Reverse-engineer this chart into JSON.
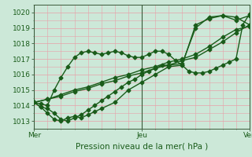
{
  "title": "",
  "xlabel": "Pression niveau de la mer( hPa )",
  "ylabel": "",
  "ylim": [
    1012.5,
    1020.5
  ],
  "xlim": [
    0,
    96
  ],
  "bg_color": "#cce8d8",
  "plot_bg_color": "#cce8d8",
  "grid_color": "#e8a0a8",
  "line_color": "#1a5c1a",
  "xticks": [
    0,
    48,
    96
  ],
  "xtick_labels": [
    "Mer",
    "Jeu",
    "Ven"
  ],
  "yticks": [
    1013,
    1014,
    1015,
    1016,
    1017,
    1018,
    1019,
    1020
  ],
  "series": [
    {
      "x": [
        0,
        6,
        12,
        18,
        24,
        30,
        36,
        42,
        48,
        54,
        60,
        66,
        72,
        78,
        84,
        90,
        96
      ],
      "y": [
        1014.2,
        1014.4,
        1014.6,
        1014.9,
        1015.1,
        1015.4,
        1015.6,
        1015.9,
        1016.1,
        1016.4,
        1016.6,
        1016.9,
        1017.1,
        1017.6,
        1018.1,
        1018.7,
        1019.2
      ],
      "marker": "D",
      "markersize": 2.5,
      "linewidth": 1.0
    },
    {
      "x": [
        0,
        6,
        12,
        18,
        24,
        30,
        36,
        42,
        48,
        54,
        60,
        66,
        72,
        78,
        84,
        90,
        96
      ],
      "y": [
        1014.2,
        1014.4,
        1014.7,
        1015.0,
        1015.2,
        1015.5,
        1015.8,
        1016.0,
        1016.3,
        1016.5,
        1016.8,
        1017.0,
        1017.3,
        1017.8,
        1018.4,
        1018.9,
        1019.1
      ],
      "marker": "D",
      "markersize": 2.5,
      "linewidth": 1.0
    },
    {
      "x": [
        0,
        3,
        6,
        9,
        12,
        15,
        18,
        21,
        24,
        27,
        30,
        33,
        36,
        39,
        42,
        45,
        48,
        51,
        54,
        57,
        60,
        63,
        66,
        69,
        72,
        75,
        78,
        81,
        84,
        87,
        90,
        93,
        96
      ],
      "y": [
        1014.2,
        1014.1,
        1014.0,
        1015.0,
        1015.8,
        1016.5,
        1017.1,
        1017.4,
        1017.5,
        1017.4,
        1017.3,
        1017.4,
        1017.5,
        1017.4,
        1017.2,
        1017.1,
        1017.1,
        1017.3,
        1017.5,
        1017.5,
        1017.3,
        1016.9,
        1016.6,
        1016.2,
        1016.1,
        1016.1,
        1016.2,
        1016.4,
        1016.6,
        1016.8,
        1017.0,
        1019.2,
        1019.9
      ],
      "marker": "D",
      "markersize": 2.5,
      "linewidth": 1.0
    },
    {
      "x": [
        0,
        3,
        6,
        9,
        12,
        15,
        18,
        21,
        24,
        27,
        30,
        33,
        36,
        39,
        42,
        45,
        48,
        51,
        54,
        57,
        60,
        66,
        72,
        78,
        84,
        90,
        96
      ],
      "y": [
        1014.2,
        1013.9,
        1013.8,
        1013.5,
        1013.1,
        1013.0,
        1013.2,
        1013.4,
        1013.7,
        1014.0,
        1014.3,
        1014.6,
        1014.9,
        1015.2,
        1015.5,
        1015.7,
        1016.0,
        1016.2,
        1016.4,
        1016.6,
        1016.6,
        1016.7,
        1019.0,
        1019.7,
        1019.8,
        1019.7,
        1019.2
      ],
      "marker": "D",
      "markersize": 2.5,
      "linewidth": 1.0
    },
    {
      "x": [
        0,
        3,
        6,
        9,
        12,
        15,
        18,
        21,
        24,
        27,
        30,
        36,
        42,
        48,
        54,
        60,
        66,
        72,
        78,
        84,
        90,
        96
      ],
      "y": [
        1014.2,
        1013.9,
        1013.5,
        1013.1,
        1013.0,
        1013.2,
        1013.3,
        1013.2,
        1013.4,
        1013.6,
        1013.8,
        1014.2,
        1015.0,
        1015.5,
        1016.0,
        1016.5,
        1016.6,
        1019.2,
        1019.6,
        1019.8,
        1019.5,
        1019.8
      ],
      "marker": "D",
      "markersize": 2.5,
      "linewidth": 1.0
    }
  ],
  "vlines": [
    0,
    48,
    96
  ],
  "vline_color": "#3a5a3a",
  "xlabel_fontsize": 7.5,
  "tick_fontsize": 6.5
}
